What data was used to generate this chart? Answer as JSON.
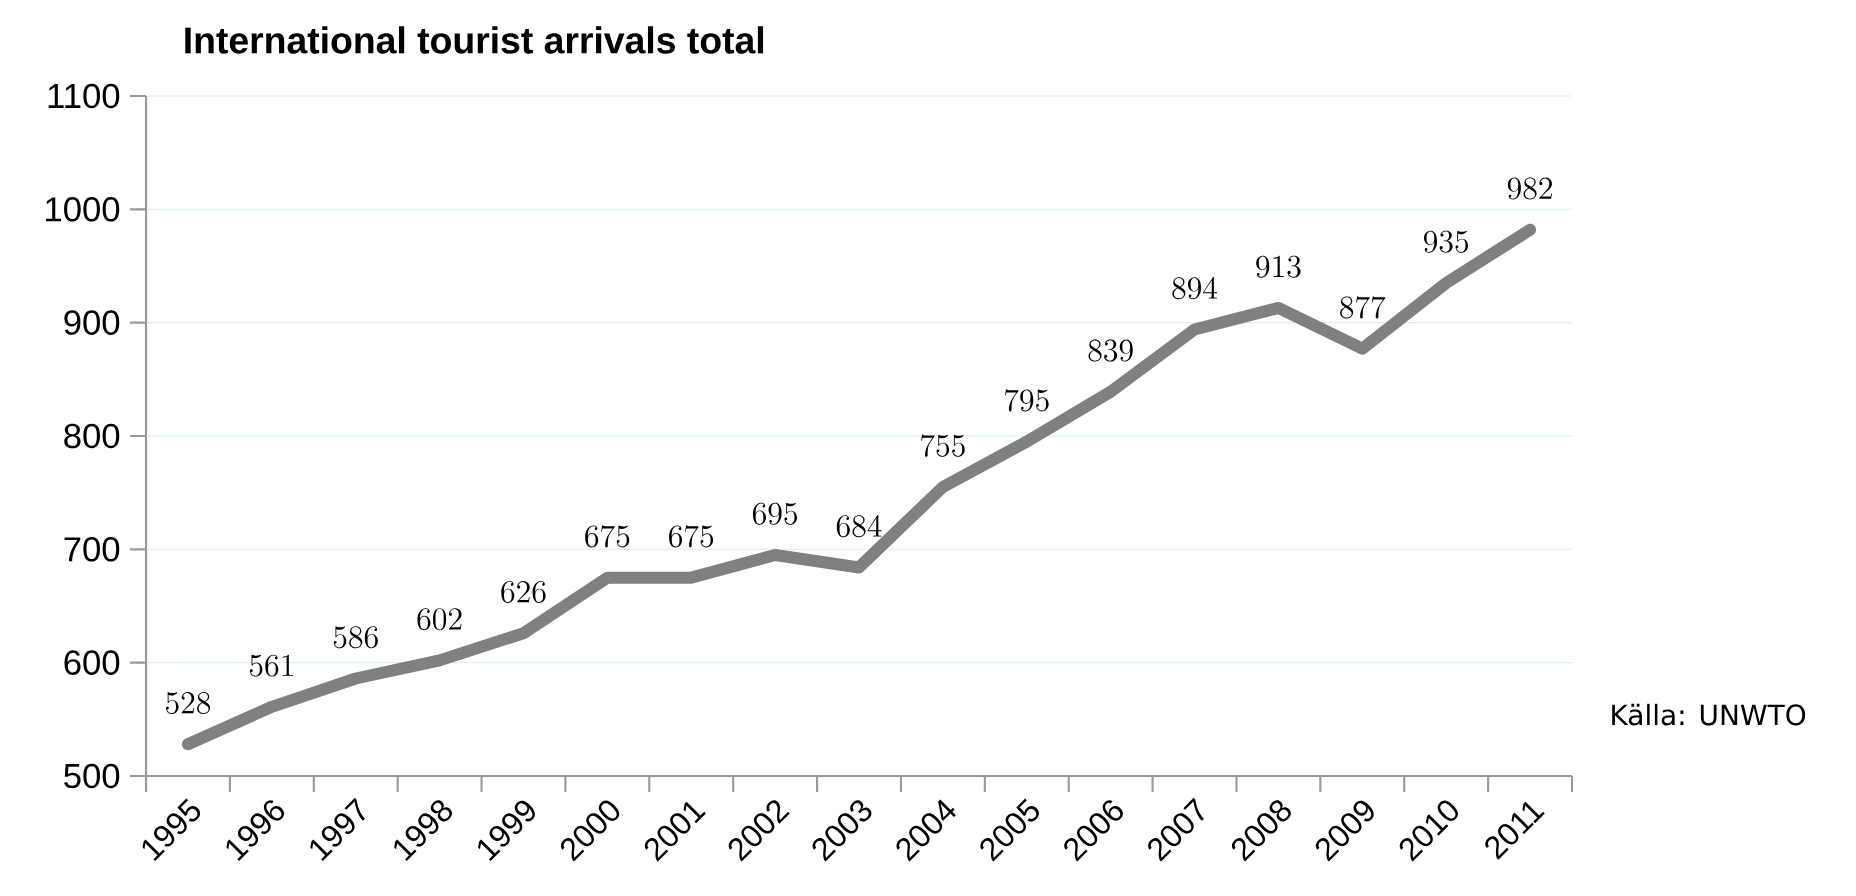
{
  "chart_data": {
    "type": "line",
    "title": "International tourist arrivals total",
    "categories": [
      "1995",
      "1996",
      "1997",
      "1998",
      "1999",
      "2000",
      "2001",
      "2002",
      "2003",
      "2004",
      "2005",
      "2006",
      "2007",
      "2008",
      "2009",
      "2010",
      "2011"
    ],
    "values": [
      528,
      561,
      586,
      602,
      626,
      675,
      675,
      695,
      684,
      755,
      795,
      839,
      894,
      913,
      877,
      935,
      982
    ],
    "color": "#808080",
    "ylim": [
      500,
      1100
    ],
    "yticks": [
      500,
      600,
      700,
      800,
      900,
      1000,
      1100
    ],
    "grid": "y",
    "data_labels": true,
    "annotations": [
      "Källa: UNWTO"
    ]
  }
}
